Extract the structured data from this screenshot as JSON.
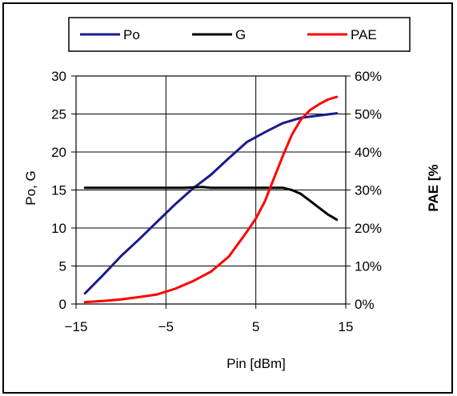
{
  "colors": {
    "po": "#1a1a8c",
    "g": "#000000",
    "pae": "#ff0000",
    "grid": "#000000",
    "frame": "#000000"
  },
  "chart_data": {
    "type": "line",
    "title": "",
    "xlabel": "Pin [dBm]",
    "ylabel": "Po, G",
    "y2label": "PAE [%",
    "xlim": [
      -15,
      15
    ],
    "ylim": [
      0,
      30
    ],
    "y2lim": [
      0,
      60
    ],
    "x_ticks": [
      -15,
      -5,
      5,
      15
    ],
    "y_ticks": [
      0,
      5,
      10,
      15,
      20,
      25,
      30
    ],
    "y2_ticks": [
      "0%",
      "10%",
      "20%",
      "30%",
      "40%",
      "50%",
      "60%"
    ],
    "grid": true,
    "legend_position": "top",
    "series": [
      {
        "name": "Po",
        "axis": "left",
        "x": [
          -14,
          -12,
          -10,
          -8,
          -6,
          -4,
          -2,
          0,
          2,
          4,
          6,
          8,
          10,
          12,
          14
        ],
        "y": [
          1.4,
          3.8,
          6.3,
          8.5,
          10.8,
          13.1,
          15.2,
          17.0,
          19.2,
          21.3,
          22.6,
          23.8,
          24.5,
          24.8,
          25.1
        ]
      },
      {
        "name": "G",
        "axis": "left",
        "x": [
          -14,
          -10,
          -6,
          -3,
          -1,
          0,
          2,
          4,
          6,
          8,
          9,
          10,
          11,
          12,
          13,
          14
        ],
        "y": [
          15.3,
          15.3,
          15.3,
          15.3,
          15.4,
          15.3,
          15.3,
          15.3,
          15.3,
          15.3,
          15.0,
          14.5,
          13.6,
          12.7,
          11.8,
          11.1
        ]
      },
      {
        "name": "PAE",
        "axis": "right",
        "x": [
          -14,
          -12,
          -10,
          -8,
          -6,
          -4,
          -2,
          0,
          2,
          4,
          5,
          6,
          7,
          8,
          9,
          10,
          11,
          12,
          13,
          14
        ],
        "y": [
          0.5,
          0.8,
          1.2,
          1.8,
          2.5,
          4.0,
          6.0,
          8.5,
          12.5,
          19.0,
          22.5,
          27.0,
          33.0,
          39.0,
          44.5,
          48.5,
          51.0,
          52.5,
          53.8,
          54.5
        ]
      }
    ]
  }
}
